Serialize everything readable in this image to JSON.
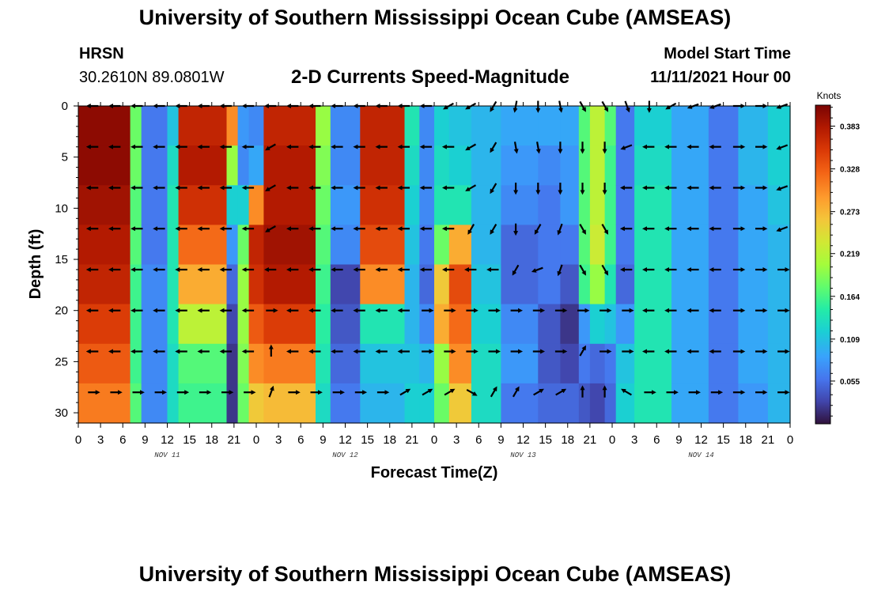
{
  "header": {
    "title": "University of Southern Mississippi Ocean Cube (AMSEAS)",
    "station": "HRSN",
    "coordinates": "30.2610N  89.0801W",
    "subtitle": "2-D Currents Speed-Magnitude",
    "model_start_label": "Model Start Time",
    "model_start_value": "11/11/2021 Hour 00"
  },
  "footer": {
    "title": "University of Southern Mississippi Ocean Cube (AMSEAS)"
  },
  "chart_data": {
    "type": "heatmap",
    "title": "2-D Currents Speed-Magnitude",
    "xlabel": "Forecast Time(Z)",
    "ylabel": "Depth (ft)",
    "xlim": [
      0,
      96
    ],
    "ylim": [
      31,
      0
    ],
    "x_tick_values": [
      0,
      3,
      6,
      9,
      12,
      15,
      18,
      21,
      24,
      27,
      30,
      33,
      36,
      39,
      42,
      45,
      48,
      51,
      54,
      57,
      60,
      63,
      66,
      69,
      72,
      75,
      78,
      81,
      84,
      87,
      90,
      93,
      96
    ],
    "x_tick_labels": [
      "0",
      "3",
      "6",
      "9",
      "12",
      "15",
      "18",
      "21",
      "0",
      "3",
      "6",
      "9",
      "12",
      "15",
      "18",
      "21",
      "0",
      "3",
      "6",
      "9",
      "12",
      "15",
      "18",
      "21",
      "0",
      "3",
      "6",
      "9",
      "12",
      "15",
      "18",
      "21",
      "0"
    ],
    "day_labels": [
      {
        "label": "NOV 11",
        "hour": 12
      },
      {
        "label": "NOV 12",
        "hour": 36
      },
      {
        "label": "NOV 13",
        "hour": 60
      },
      {
        "label": "NOV 14",
        "hour": 84
      }
    ],
    "y_tick_values": [
      0,
      5,
      10,
      15,
      20,
      25,
      30
    ],
    "y_tick_labels": [
      "0",
      "5",
      "10",
      "15",
      "20",
      "25",
      "30"
    ],
    "colorbar": {
      "unit": "Knots",
      "min": 0.0,
      "max": 0.41,
      "tick_values": [
        0.055,
        0.109,
        0.164,
        0.219,
        0.273,
        0.328,
        0.383
      ],
      "tick_labels": [
        "0.055",
        "0.109",
        "0.164",
        "0.219",
        "0.273",
        "0.328",
        "0.383"
      ]
    },
    "speed_bands": [
      {
        "from": 0,
        "to": 7,
        "speed": [
          0.4,
          0.4,
          0.39,
          0.38,
          0.37,
          0.35,
          0.33,
          0.31
        ]
      },
      {
        "from": 7,
        "to": 8.5,
        "speed": [
          0.18,
          0.18,
          0.17,
          0.17,
          0.16,
          0.16,
          0.16,
          0.17
        ]
      },
      {
        "from": 8.5,
        "to": 12,
        "speed": [
          0.06,
          0.06,
          0.06,
          0.06,
          0.07,
          0.07,
          0.07,
          0.07
        ]
      },
      {
        "from": 12,
        "to": 13.5,
        "speed": [
          0.11,
          0.13,
          0.14,
          0.14,
          0.14,
          0.14,
          0.13,
          0.13
        ]
      },
      {
        "from": 13.5,
        "to": 20,
        "speed": [
          0.37,
          0.38,
          0.36,
          0.32,
          0.28,
          0.22,
          0.17,
          0.16
        ]
      },
      {
        "from": 20,
        "to": 21.5,
        "speed": [
          0.3,
          0.2,
          0.12,
          0.08,
          0.05,
          0.03,
          0.02,
          0.02
        ]
      },
      {
        "from": 21.5,
        "to": 23,
        "speed": [
          0.08,
          0.07,
          0.12,
          0.18,
          0.2,
          0.2,
          0.19,
          0.18
        ]
      },
      {
        "from": 23,
        "to": 25,
        "speed": [
          0.07,
          0.09,
          0.3,
          0.37,
          0.36,
          0.33,
          0.3,
          0.26
        ]
      },
      {
        "from": 25,
        "to": 32,
        "speed": [
          0.37,
          0.38,
          0.38,
          0.39,
          0.38,
          0.35,
          0.31,
          0.27
        ]
      },
      {
        "from": 32,
        "to": 34,
        "speed": [
          0.2,
          0.19,
          0.18,
          0.17,
          0.16,
          0.15,
          0.14,
          0.13
        ]
      },
      {
        "from": 34,
        "to": 38,
        "speed": [
          0.07,
          0.07,
          0.08,
          0.07,
          0.03,
          0.04,
          0.05,
          0.06
        ]
      },
      {
        "from": 38,
        "to": 44,
        "speed": [
          0.37,
          0.37,
          0.36,
          0.34,
          0.3,
          0.14,
          0.11,
          0.1
        ]
      },
      {
        "from": 44,
        "to": 46,
        "speed": [
          0.14,
          0.13,
          0.12,
          0.11,
          0.1,
          0.1,
          0.11,
          0.12
        ]
      },
      {
        "from": 46,
        "to": 48,
        "speed": [
          0.07,
          0.07,
          0.07,
          0.06,
          0.05,
          0.07,
          0.1,
          0.12
        ]
      },
      {
        "from": 48,
        "to": 50,
        "speed": [
          0.12,
          0.13,
          0.14,
          0.18,
          0.26,
          0.28,
          0.2,
          0.18
        ]
      },
      {
        "from": 50,
        "to": 53,
        "speed": [
          0.11,
          0.12,
          0.14,
          0.28,
          0.34,
          0.32,
          0.3,
          0.26
        ]
      },
      {
        "from": 53,
        "to": 57,
        "speed": [
          0.1,
          0.1,
          0.1,
          0.1,
          0.11,
          0.12,
          0.13,
          0.13
        ]
      },
      {
        "from": 57,
        "to": 62,
        "speed": [
          0.09,
          0.08,
          0.07,
          0.05,
          0.05,
          0.07,
          0.08,
          0.06
        ]
      },
      {
        "from": 62,
        "to": 65,
        "speed": [
          0.09,
          0.07,
          0.06,
          0.06,
          0.06,
          0.04,
          0.04,
          0.05
        ]
      },
      {
        "from": 65,
        "to": 67.5,
        "speed": [
          0.09,
          0.08,
          0.08,
          0.06,
          0.04,
          0.02,
          0.03,
          0.05
        ]
      },
      {
        "from": 67.5,
        "to": 69,
        "speed": [
          0.17,
          0.17,
          0.17,
          0.17,
          0.16,
          0.08,
          0.06,
          0.04
        ]
      },
      {
        "from": 69,
        "to": 71,
        "speed": [
          0.22,
          0.22,
          0.22,
          0.23,
          0.2,
          0.12,
          0.05,
          0.03
        ]
      },
      {
        "from": 71,
        "to": 72.5,
        "speed": [
          0.17,
          0.16,
          0.16,
          0.16,
          0.14,
          0.11,
          0.06,
          0.05
        ]
      },
      {
        "from": 72.5,
        "to": 75,
        "speed": [
          0.06,
          0.06,
          0.06,
          0.06,
          0.05,
          0.08,
          0.11,
          0.12
        ]
      },
      {
        "from": 75,
        "to": 80,
        "speed": [
          0.12,
          0.13,
          0.14,
          0.14,
          0.14,
          0.14,
          0.14,
          0.14
        ]
      },
      {
        "from": 80,
        "to": 85,
        "speed": [
          0.09,
          0.09,
          0.09,
          0.09,
          0.09,
          0.09,
          0.09,
          0.09
        ]
      },
      {
        "from": 85,
        "to": 89,
        "speed": [
          0.06,
          0.06,
          0.06,
          0.06,
          0.06,
          0.06,
          0.06,
          0.06
        ]
      },
      {
        "from": 89,
        "to": 93,
        "speed": [
          0.1,
          0.1,
          0.09,
          0.09,
          0.09,
          0.09,
          0.09,
          0.08
        ]
      },
      {
        "from": 93,
        "to": 96,
        "speed": [
          0.12,
          0.12,
          0.11,
          0.1,
          0.1,
          0.1,
          0.1,
          0.1
        ]
      }
    ],
    "vector_hours": [
      2,
      5,
      8,
      11,
      14,
      17,
      20,
      23,
      26,
      29,
      32,
      35,
      38,
      41,
      44,
      47,
      50,
      53,
      56,
      59,
      62,
      65,
      68,
      71,
      74,
      77,
      80,
      83,
      86,
      89,
      92,
      95
    ],
    "vector_depths": [
      0,
      4,
      8,
      12,
      16,
      20,
      24,
      28
    ],
    "vector_angles_deg": [
      [
        180,
        180,
        180,
        180,
        180,
        180,
        180,
        180,
        180,
        180,
        180,
        180,
        180,
        180,
        180,
        180,
        210,
        210,
        240,
        260,
        270,
        280,
        300,
        300,
        290,
        270,
        210,
        200,
        200,
        0,
        0,
        200
      ],
      [
        180,
        180,
        180,
        180,
        180,
        180,
        180,
        180,
        210,
        180,
        180,
        180,
        180,
        180,
        180,
        180,
        180,
        210,
        240,
        280,
        280,
        270,
        270,
        270,
        200,
        180,
        180,
        180,
        180,
        0,
        0,
        200
      ],
      [
        180,
        180,
        180,
        180,
        180,
        180,
        180,
        180,
        210,
        180,
        180,
        180,
        180,
        180,
        180,
        180,
        180,
        210,
        240,
        270,
        270,
        270,
        270,
        270,
        180,
        180,
        180,
        180,
        180,
        0,
        0,
        200
      ],
      [
        180,
        180,
        180,
        180,
        180,
        180,
        180,
        180,
        210,
        180,
        180,
        180,
        180,
        180,
        180,
        180,
        180,
        240,
        240,
        270,
        240,
        250,
        300,
        300,
        180,
        180,
        180,
        180,
        180,
        0,
        0,
        200
      ],
      [
        180,
        180,
        180,
        180,
        180,
        180,
        180,
        180,
        180,
        180,
        180,
        180,
        180,
        180,
        180,
        180,
        180,
        180,
        180,
        240,
        200,
        250,
        300,
        300,
        180,
        180,
        180,
        180,
        180,
        0,
        0,
        0
      ],
      [
        180,
        180,
        180,
        180,
        180,
        180,
        180,
        180,
        0,
        180,
        180,
        180,
        180,
        180,
        180,
        0,
        0,
        0,
        0,
        0,
        0,
        0,
        0,
        0,
        0,
        180,
        180,
        180,
        180,
        0,
        0,
        0
      ],
      [
        180,
        180,
        180,
        180,
        180,
        180,
        180,
        180,
        90,
        180,
        180,
        180,
        180,
        180,
        180,
        0,
        0,
        0,
        0,
        0,
        0,
        0,
        60,
        0,
        0,
        180,
        180,
        180,
        180,
        0,
        0,
        0
      ],
      [
        0,
        0,
        0,
        0,
        0,
        0,
        0,
        0,
        70,
        0,
        0,
        0,
        0,
        0,
        30,
        30,
        30,
        330,
        60,
        60,
        30,
        30,
        90,
        90,
        150,
        0,
        0,
        0,
        0,
        0,
        0,
        0
      ]
    ]
  }
}
